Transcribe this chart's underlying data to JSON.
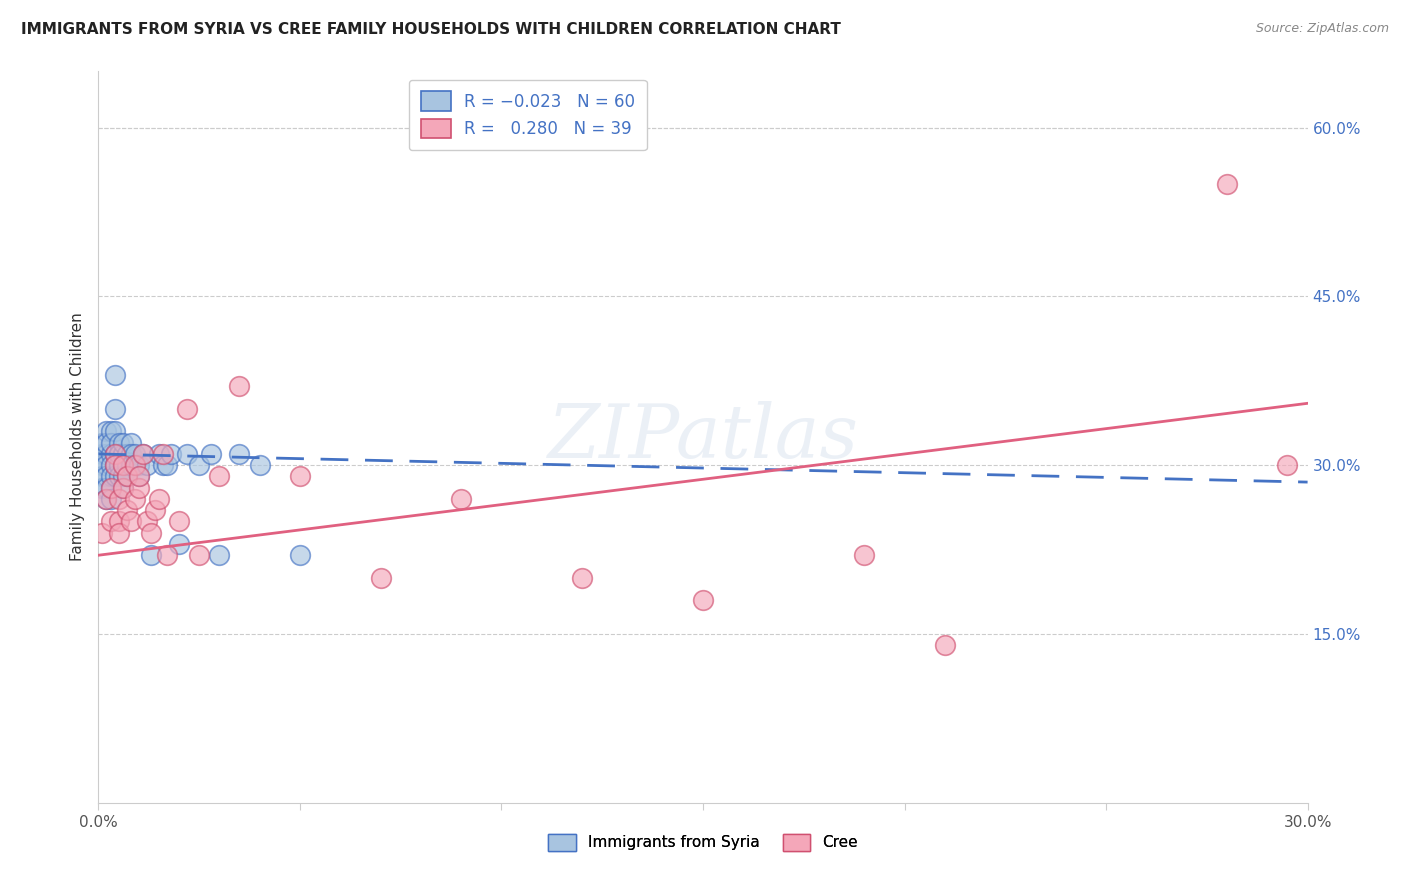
{
  "title": "IMMIGRANTS FROM SYRIA VS CREE FAMILY HOUSEHOLDS WITH CHILDREN CORRELATION CHART",
  "source": "Source: ZipAtlas.com",
  "ylabel": "Family Households with Children",
  "xlim": [
    0.0,
    0.3
  ],
  "ylim": [
    0.0,
    0.65
  ],
  "xtick_vals": [
    0.0,
    0.05,
    0.1,
    0.15,
    0.2,
    0.25,
    0.3
  ],
  "xtick_labels": [
    "0.0%",
    "",
    "",
    "",
    "",
    "",
    "30.0%"
  ],
  "yticks_right": [
    0.15,
    0.3,
    0.45,
    0.6
  ],
  "ytick_labels_right": [
    "15.0%",
    "30.0%",
    "45.0%",
    "60.0%"
  ],
  "color_syria": "#a8c4e0",
  "color_cree": "#f4a7b9",
  "line_color_syria": "#4472c4",
  "line_color_cree": "#e06080",
  "watermark": "ZIPatlas",
  "syria_x": [
    0.001,
    0.001,
    0.001,
    0.001,
    0.001,
    0.002,
    0.002,
    0.002,
    0.002,
    0.002,
    0.002,
    0.002,
    0.003,
    0.003,
    0.003,
    0.003,
    0.003,
    0.003,
    0.003,
    0.004,
    0.004,
    0.004,
    0.004,
    0.004,
    0.004,
    0.005,
    0.005,
    0.005,
    0.005,
    0.005,
    0.006,
    0.006,
    0.006,
    0.006,
    0.006,
    0.007,
    0.007,
    0.007,
    0.008,
    0.008,
    0.008,
    0.009,
    0.009,
    0.01,
    0.01,
    0.011,
    0.012,
    0.013,
    0.015,
    0.016,
    0.017,
    0.018,
    0.02,
    0.022,
    0.025,
    0.028,
    0.03,
    0.035,
    0.04,
    0.05
  ],
  "syria_y": [
    0.31,
    0.3,
    0.29,
    0.28,
    0.32,
    0.31,
    0.3,
    0.29,
    0.33,
    0.28,
    0.32,
    0.27,
    0.31,
    0.3,
    0.29,
    0.33,
    0.28,
    0.32,
    0.27,
    0.38,
    0.35,
    0.33,
    0.31,
    0.3,
    0.29,
    0.32,
    0.31,
    0.3,
    0.29,
    0.31,
    0.31,
    0.3,
    0.29,
    0.32,
    0.28,
    0.31,
    0.3,
    0.29,
    0.32,
    0.31,
    0.3,
    0.31,
    0.3,
    0.3,
    0.29,
    0.31,
    0.3,
    0.22,
    0.31,
    0.3,
    0.3,
    0.31,
    0.23,
    0.31,
    0.3,
    0.31,
    0.22,
    0.31,
    0.3,
    0.22
  ],
  "cree_x": [
    0.001,
    0.002,
    0.003,
    0.003,
    0.004,
    0.004,
    0.005,
    0.005,
    0.005,
    0.006,
    0.006,
    0.007,
    0.007,
    0.008,
    0.009,
    0.009,
    0.01,
    0.01,
    0.011,
    0.012,
    0.013,
    0.014,
    0.015,
    0.016,
    0.017,
    0.02,
    0.022,
    0.025,
    0.03,
    0.035,
    0.05,
    0.07,
    0.09,
    0.12,
    0.15,
    0.19,
    0.21,
    0.28,
    0.295
  ],
  "cree_y": [
    0.24,
    0.27,
    0.25,
    0.28,
    0.31,
    0.3,
    0.27,
    0.25,
    0.24,
    0.3,
    0.28,
    0.26,
    0.29,
    0.25,
    0.3,
    0.27,
    0.28,
    0.29,
    0.31,
    0.25,
    0.24,
    0.26,
    0.27,
    0.31,
    0.22,
    0.25,
    0.35,
    0.22,
    0.29,
    0.37,
    0.29,
    0.2,
    0.27,
    0.2,
    0.18,
    0.22,
    0.14,
    0.55,
    0.3
  ],
  "syria_line_x0": 0.0,
  "syria_line_y0": 0.31,
  "syria_line_x1": 0.3,
  "syria_line_y1": 0.285,
  "cree_line_x0": 0.0,
  "cree_line_y0": 0.22,
  "cree_line_x1": 0.3,
  "cree_line_y1": 0.355
}
